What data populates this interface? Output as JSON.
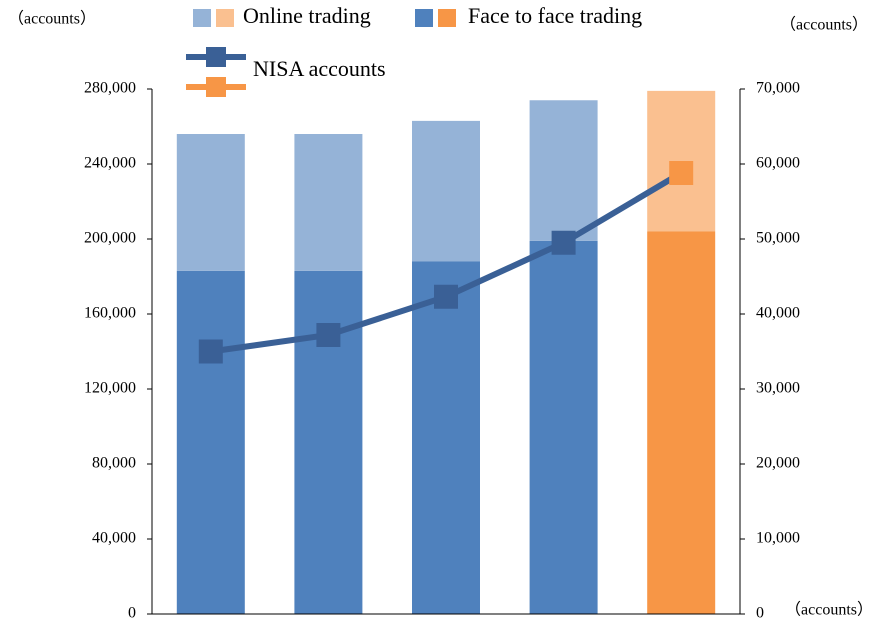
{
  "chart_data": {
    "type": "bar",
    "y_label": "（accounts）",
    "y2_label": "（accounts）",
    "annotation": "（accounts）",
    "categories": [
      null,
      null,
      null,
      null,
      null
    ],
    "series": [
      {
        "name": "Face to face trading",
        "colors": [
          "#4f81bd",
          "#4f81bd",
          "#4f81bd",
          "#4f81bd",
          "#f79646"
        ],
        "values": [
          183000,
          183000,
          188000,
          199000,
          204000
        ]
      },
      {
        "name": "Online trading",
        "colors": [
          "#95b3d7",
          "#95b3d7",
          "#95b3d7",
          "#95b3d7",
          "#fac090"
        ],
        "values": [
          73000,
          73000,
          75000,
          75000,
          75000
        ]
      },
      {
        "name": "NISA accounts",
        "type": "line",
        "axis": "y2",
        "color": "#3a6096",
        "marker_colors": [
          "#3a6096",
          "#3a6096",
          "#3a6096",
          "#3a6096",
          "#f79646"
        ],
        "values": [
          35000,
          37200,
          42300,
          49500,
          58800
        ]
      }
    ],
    "stacked": true,
    "ylim": [
      0,
      280000
    ],
    "yticks": [
      0,
      {
        "value": 40000,
        "label": "40,000"
      },
      {
        "value": 80000,
        "label": "80,000"
      },
      {
        "value": 120000,
        "label": "120,000"
      },
      {
        "value": 160000,
        "label": "160,000"
      },
      {
        "value": 200000,
        "label": "200,000"
      },
      {
        "value": 240000,
        "label": "240,000"
      },
      {
        "value": 280000,
        "label": "280,000"
      }
    ],
    "y2lim": [
      0,
      70000
    ],
    "y2ticks": [
      0,
      {
        "value": 10000,
        "label": "10,000"
      },
      {
        "value": 20000,
        "label": "20,000"
      },
      {
        "value": 30000,
        "label": "30,000"
      },
      {
        "value": 40000,
        "label": "40,000"
      },
      {
        "value": 50000,
        "label": "50,000"
      },
      {
        "value": 60000,
        "label": "60,000"
      },
      {
        "value": 70000,
        "label": "70,000"
      }
    ],
    "grid": false
  }
}
